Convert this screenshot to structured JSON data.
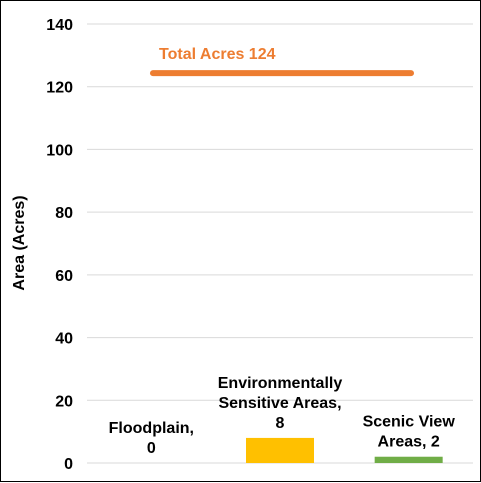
{
  "chart_data": {
    "type": "bar",
    "ylabel": "Area (Acres)",
    "ylim": [
      0,
      140
    ],
    "yticks": [
      0,
      20,
      40,
      60,
      80,
      100,
      120,
      140
    ],
    "grid": true,
    "legend": "none",
    "categories": [
      "Floodplain",
      "Environmentally Sensitive Areas",
      "Scenic View Areas"
    ],
    "values": [
      0,
      8,
      2
    ],
    "bar_colors": [
      "#4472C4",
      "#FFC000",
      "#70AD47"
    ],
    "data_labels": [
      [
        "Floodplain,",
        "0"
      ],
      [
        "Environmentally",
        "Sensitive Areas,",
        "8"
      ],
      [
        "Scenic View",
        "Areas, 2"
      ]
    ],
    "total_line": {
      "label": "Total Acres 124",
      "value": 124,
      "color": "#ED7D31"
    },
    "gridline_color": "#D9D9D9"
  }
}
